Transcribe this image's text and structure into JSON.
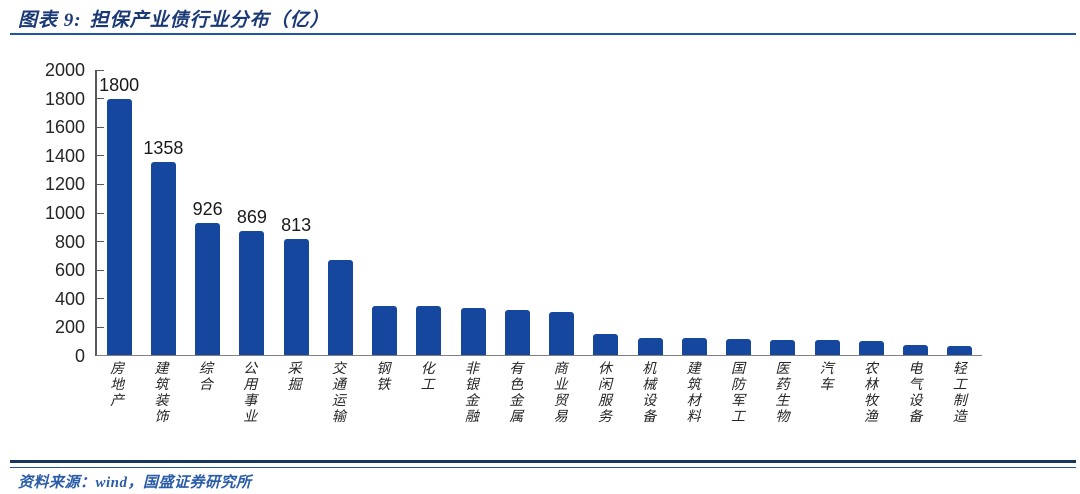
{
  "header": {
    "prefix": "图表 9:",
    "title": "担保产业债行业分布（亿）"
  },
  "footer": {
    "source": "资料来源：wind，国盛证券研究所"
  },
  "colors": {
    "bar": "#15479e",
    "title_text": "#1b3a75",
    "rule_blue": "#2155a3",
    "rule_dark": "#17375e",
    "source_text": "#2a5ca8"
  },
  "chart_data": {
    "type": "bar",
    "title": "担保产业债行业分布（亿）",
    "xlabel": "",
    "ylabel": "",
    "categories": [
      "房地产",
      "建筑装饰",
      "综合",
      "公用事业",
      "采掘",
      "交通运输",
      "钢铁",
      "化工",
      "非银金融",
      "有色金属",
      "商业贸易",
      "休闲服务",
      "机械设备",
      "建筑材料",
      "国防军工",
      "医药生物",
      "汽车",
      "农林牧渔",
      "电气设备",
      "轻工制造"
    ],
    "values": [
      1800,
      1358,
      926,
      869,
      813,
      670,
      345,
      343,
      330,
      315,
      300,
      145,
      120,
      118,
      115,
      105,
      103,
      100,
      68,
      65
    ],
    "data_labels": [
      "1800",
      "1358",
      "926",
      "869",
      "813",
      null,
      null,
      null,
      null,
      null,
      null,
      null,
      null,
      null,
      null,
      null,
      null,
      null,
      null,
      null
    ],
    "ylim": [
      0,
      2000
    ],
    "yticks": [
      0,
      200,
      400,
      600,
      800,
      1000,
      1200,
      1400,
      1600,
      1800,
      2000
    ],
    "grid": false,
    "legend": null,
    "label_orientation": "vertical"
  }
}
